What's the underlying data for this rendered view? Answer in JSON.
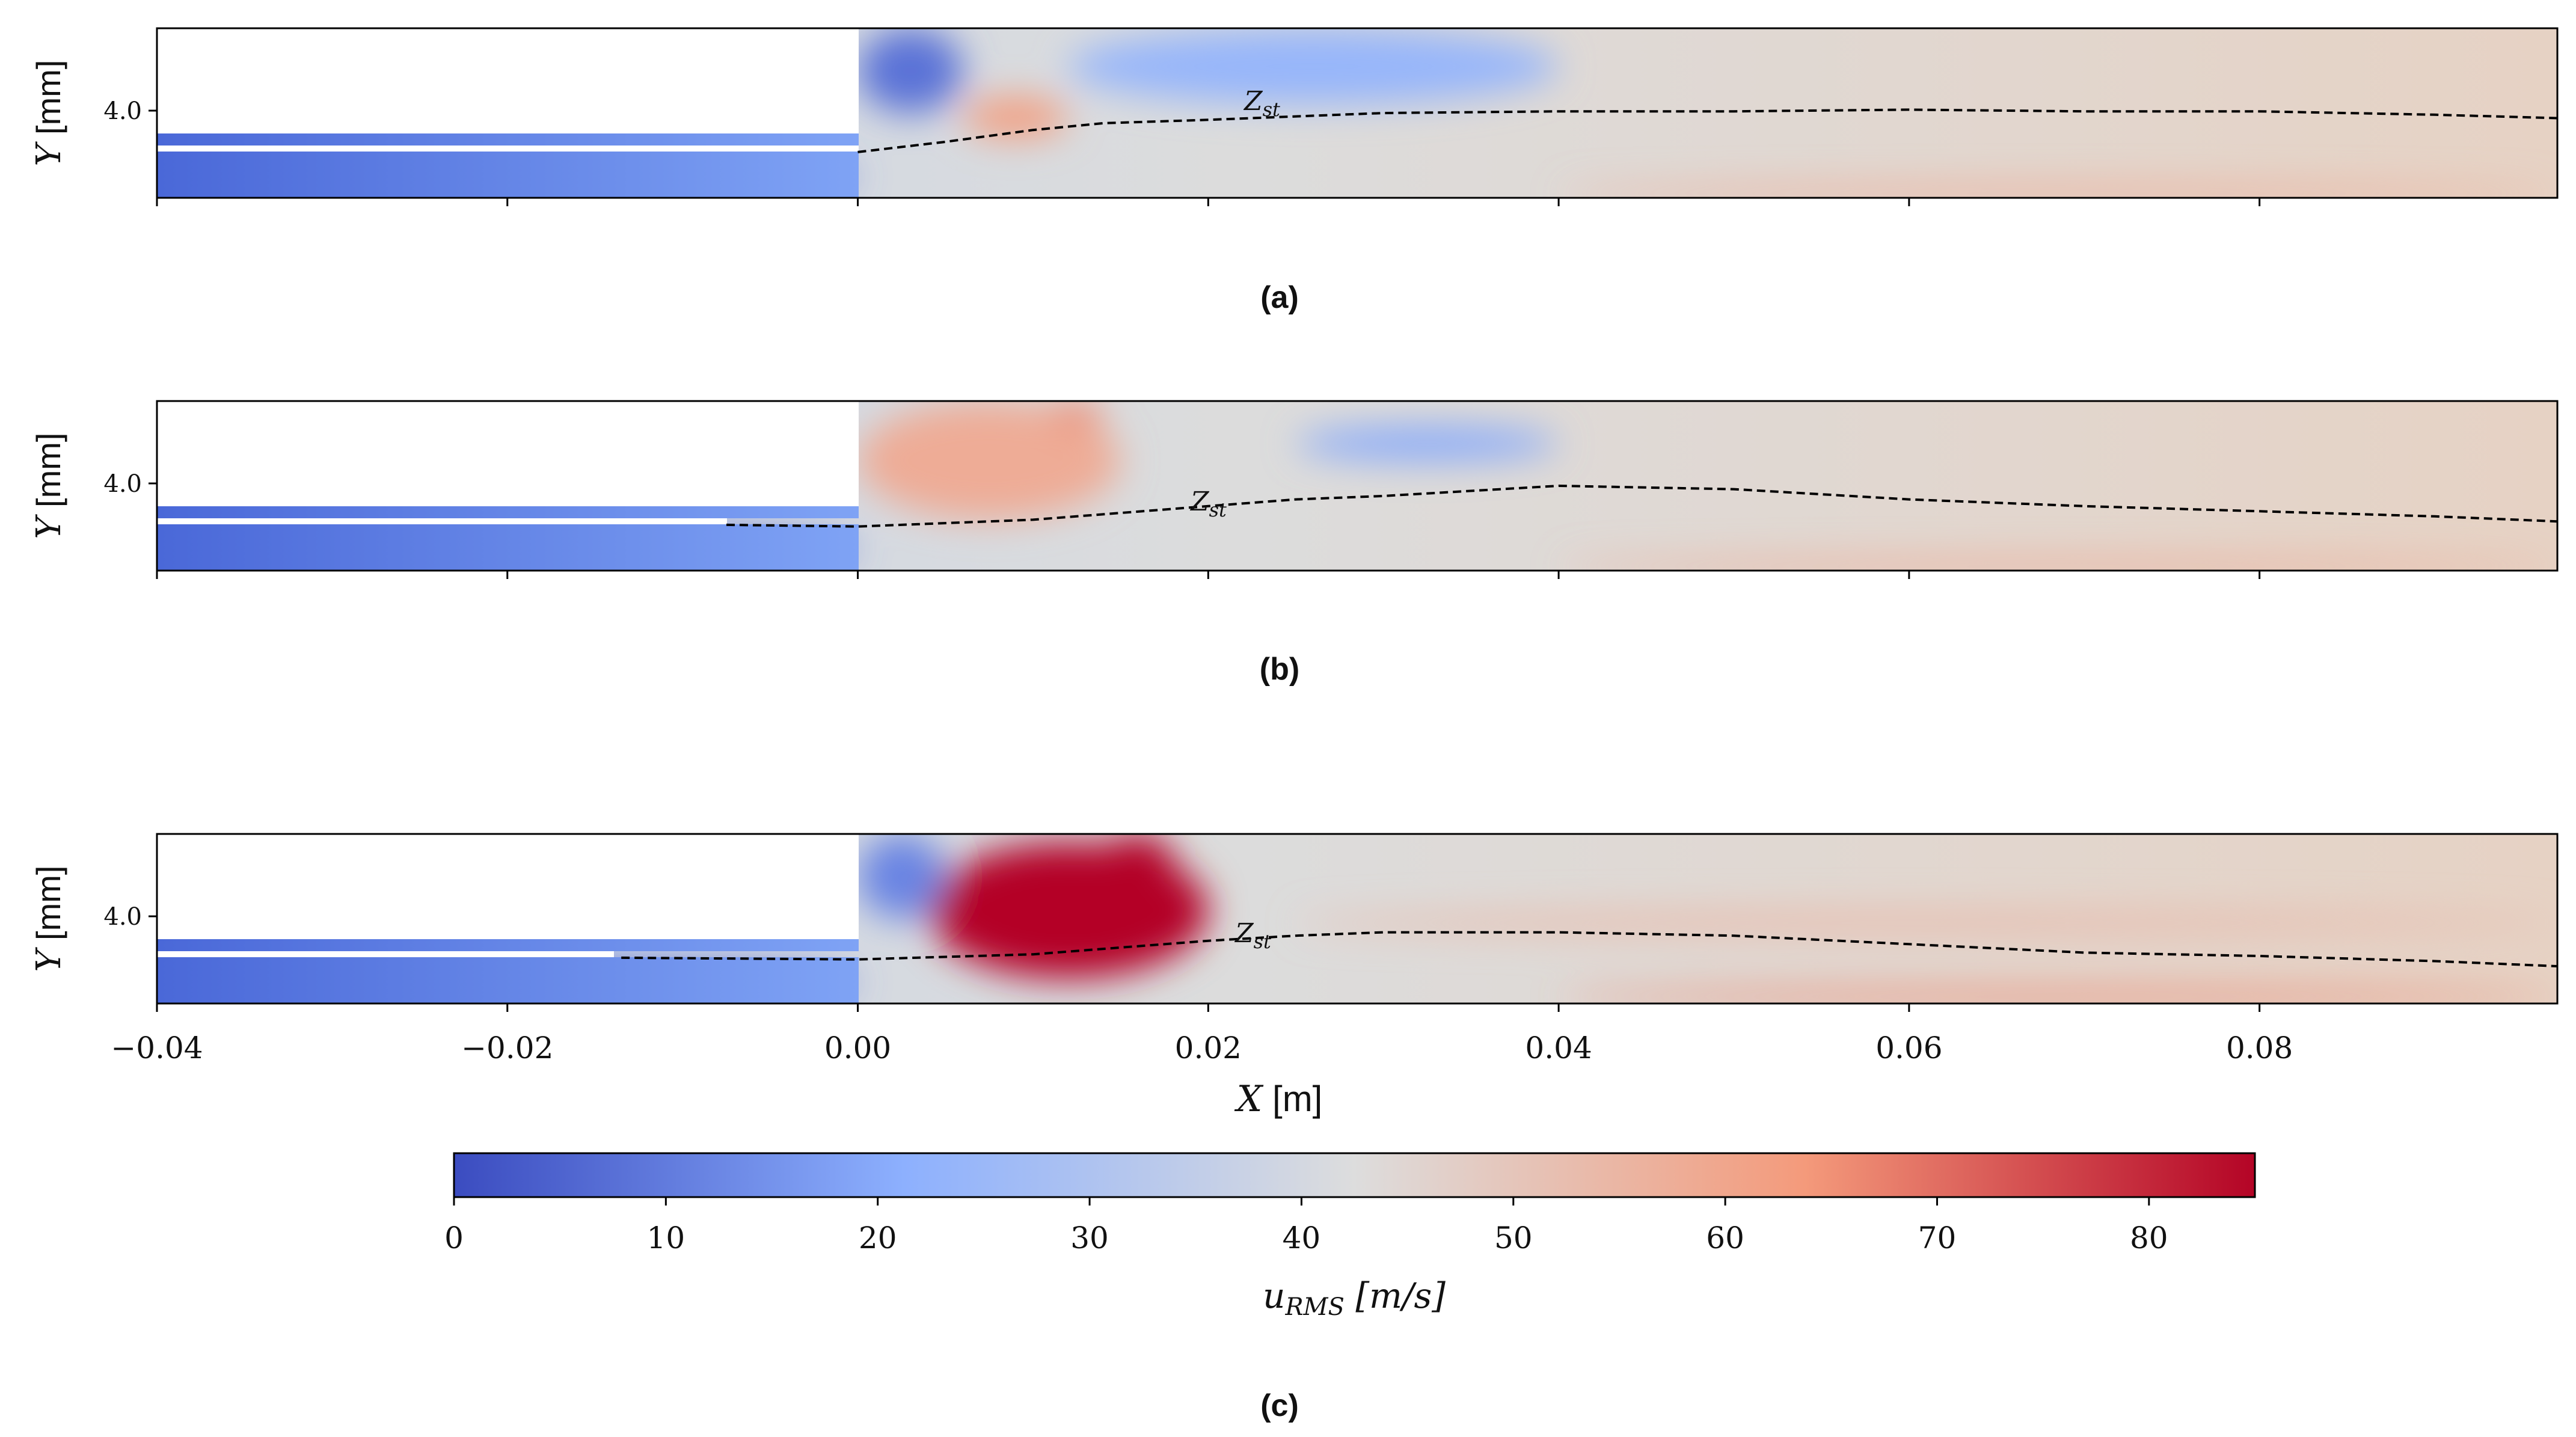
{
  "figure": {
    "panels": [
      {
        "id": "a",
        "caption": "(a)",
        "ylabel_var": "Y",
        "ylabel_unit": " [mm]",
        "ytick": "4.0",
        "zst_label": "Z",
        "zst_sub": "st"
      },
      {
        "id": "b",
        "caption": "(b)",
        "ylabel_var": "Y",
        "ylabel_unit": " [mm]",
        "ytick": "4.0",
        "zst_label": "Z",
        "zst_sub": "st"
      },
      {
        "id": "c",
        "caption": "(c)",
        "ylabel_var": "Y",
        "ylabel_unit": " [mm]",
        "ytick": "4.0",
        "zst_label": "Z",
        "zst_sub": "st"
      }
    ],
    "xaxis": {
      "label_var": "X",
      "label_unit": " [m]",
      "ticks": [
        "−0.04",
        "−0.02",
        "0.00",
        "0.02",
        "0.04",
        "0.06",
        "0.08"
      ]
    },
    "colorbar": {
      "label_var": "u",
      "label_sub": "RMS",
      "label_unit": " [m/s]",
      "ticks": [
        "0",
        "10",
        "20",
        "30",
        "40",
        "50",
        "60",
        "70",
        "80"
      ],
      "colormap": "coolwarm",
      "colors": [
        "#3b4cc0",
        "#8db0fe",
        "#dddddd",
        "#f49a7b",
        "#b40426"
      ]
    }
  },
  "chart_data": [
    {
      "type": "heatmap",
      "panel": "a",
      "quantity": "u_RMS [m/s]",
      "xlim": [
        -0.04,
        0.097
      ],
      "vlim": [
        0,
        85
      ],
      "ytick_value": 4.0,
      "contour": "Z_st",
      "contour_x": [
        0.0,
        0.005,
        0.01,
        0.014,
        0.02,
        0.025,
        0.03,
        0.04,
        0.05,
        0.06,
        0.07,
        0.08,
        0.09,
        0.097
      ],
      "contour_y_norm": [
        0.27,
        0.33,
        0.4,
        0.44,
        0.46,
        0.48,
        0.5,
        0.51,
        0.51,
        0.52,
        0.51,
        0.51,
        0.49,
        0.47
      ],
      "regions": [
        {
          "x": [
            0.0,
            0.006
          ],
          "y": [
            0.5,
            1.0
          ],
          "value": 8
        },
        {
          "x": [
            0.006,
            0.012
          ],
          "y": [
            0.35,
            0.6
          ],
          "value": 62
        },
        {
          "x": [
            0.012,
            0.04
          ],
          "y": [
            0.55,
            1.0
          ],
          "value": 24
        },
        {
          "x": [
            0.04,
            0.097
          ],
          "y": [
            0.0,
            0.05
          ],
          "value": 58
        },
        {
          "x": [
            -0.04,
            0.0
          ],
          "y": [
            0.0,
            0.25
          ],
          "value": 8
        }
      ]
    },
    {
      "type": "heatmap",
      "panel": "b",
      "quantity": "u_RMS [m/s]",
      "xlim": [
        -0.04,
        0.097
      ],
      "vlim": [
        0,
        85
      ],
      "ytick_value": 4.0,
      "contour": "Z_st",
      "contour_x": [
        -0.0075,
        0.0,
        0.01,
        0.015,
        0.02,
        0.025,
        0.03,
        0.04,
        0.05,
        0.06,
        0.07,
        0.08,
        0.09,
        0.097
      ],
      "contour_y_norm": [
        0.27,
        0.26,
        0.3,
        0.34,
        0.38,
        0.42,
        0.44,
        0.5,
        0.48,
        0.42,
        0.38,
        0.35,
        0.32,
        0.29
      ],
      "regions": [
        {
          "x": [
            0.0,
            0.015
          ],
          "y": [
            0.3,
            1.0
          ],
          "value": 58
        },
        {
          "x": [
            0.011,
            0.014
          ],
          "y": [
            0.85,
            1.0
          ],
          "value": 66
        },
        {
          "x": [
            0.025,
            0.04
          ],
          "y": [
            0.65,
            0.85
          ],
          "value": 20
        },
        {
          "x": [
            0.04,
            0.097
          ],
          "y": [
            0.0,
            0.05
          ],
          "value": 58
        },
        {
          "x": [
            -0.04,
            0.0
          ],
          "y": [
            0.0,
            0.25
          ],
          "value": 8
        }
      ]
    },
    {
      "type": "heatmap",
      "panel": "c",
      "quantity": "u_RMS [m/s]",
      "xlim": [
        -0.04,
        0.097
      ],
      "vlim": [
        0,
        85
      ],
      "ytick_value": 4.0,
      "contour": "Z_st",
      "contour_x": [
        -0.0135,
        0.0,
        0.01,
        0.015,
        0.02,
        0.025,
        0.03,
        0.04,
        0.05,
        0.06,
        0.07,
        0.08,
        0.09,
        0.097
      ],
      "contour_y_norm": [
        0.27,
        0.26,
        0.29,
        0.33,
        0.37,
        0.4,
        0.42,
        0.42,
        0.4,
        0.35,
        0.3,
        0.28,
        0.25,
        0.22
      ],
      "regions": [
        {
          "x": [
            0.004,
            0.02
          ],
          "y": [
            0.15,
            0.95
          ],
          "value": 85
        },
        {
          "x": [
            0.014,
            0.018
          ],
          "y": [
            0.7,
            1.0
          ],
          "value": 85
        },
        {
          "x": [
            0.0,
            0.005
          ],
          "y": [
            0.5,
            1.0
          ],
          "value": 12
        },
        {
          "x": [
            0.025,
            0.097
          ],
          "y": [
            0.4,
            0.55
          ],
          "value": 52
        },
        {
          "x": [
            0.04,
            0.097
          ],
          "y": [
            0.0,
            0.08
          ],
          "value": 66
        },
        {
          "x": [
            -0.04,
            0.0
          ],
          "y": [
            0.0,
            0.25
          ],
          "value": 8
        }
      ]
    }
  ]
}
